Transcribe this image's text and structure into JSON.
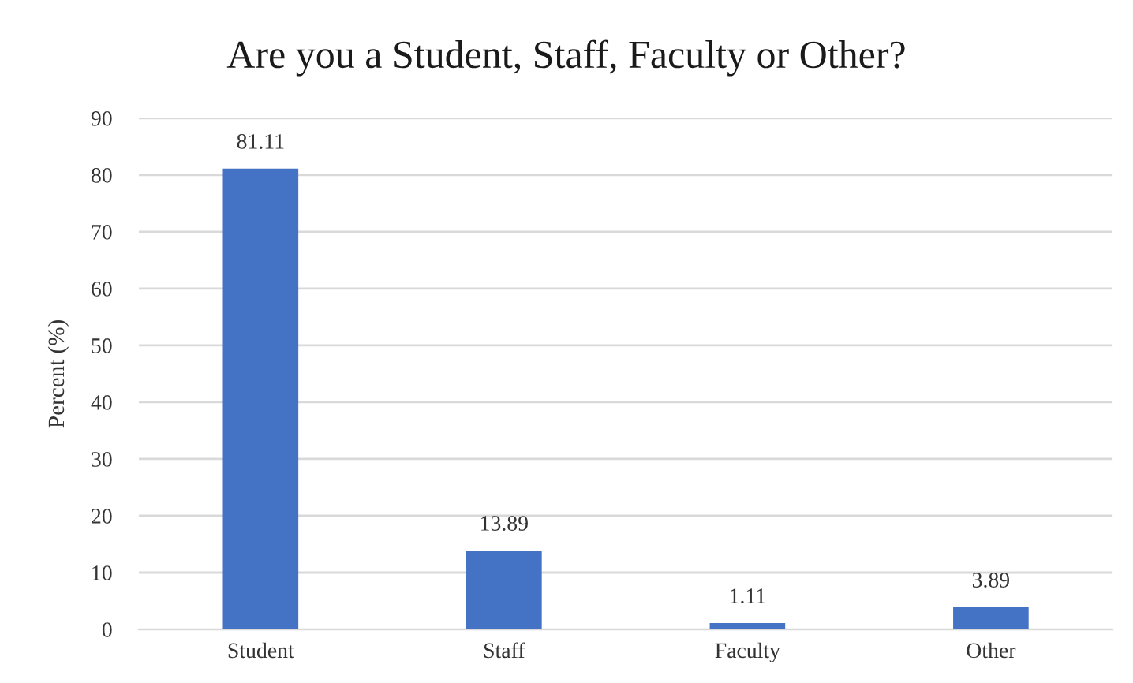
{
  "chart_data": {
    "type": "bar",
    "title": "Are you a Student, Staff, Faculty or Other?",
    "ylabel": "Percent (%)",
    "categories": [
      "Student",
      "Staff",
      "Faculty",
      "Other"
    ],
    "values": [
      81.11,
      13.89,
      1.11,
      3.89
    ],
    "color": "#4472c4",
    "ylim": [
      0,
      90
    ],
    "yticks": [
      0,
      10,
      20,
      30,
      40,
      50,
      60,
      70,
      80,
      90
    ],
    "grid": "y",
    "data_labels": true
  }
}
